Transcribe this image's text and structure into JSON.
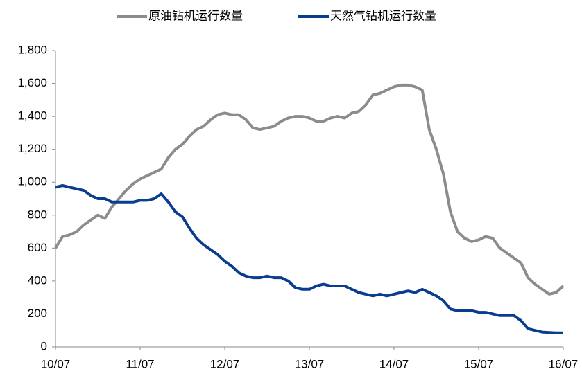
{
  "chart_data": {
    "type": "line",
    "x": [
      "10/07",
      "10/08",
      "10/09",
      "10/10",
      "10/11",
      "10/12",
      "11/01",
      "11/02",
      "11/03",
      "11/04",
      "11/05",
      "11/06",
      "11/07",
      "11/08",
      "11/09",
      "11/10",
      "11/11",
      "11/12",
      "12/01",
      "12/02",
      "12/03",
      "12/04",
      "12/05",
      "12/06",
      "12/07",
      "12/08",
      "12/09",
      "12/10",
      "12/11",
      "12/12",
      "13/01",
      "13/02",
      "13/03",
      "13/04",
      "13/05",
      "13/06",
      "13/07",
      "13/08",
      "13/09",
      "13/10",
      "13/11",
      "13/12",
      "14/01",
      "14/02",
      "14/03",
      "14/04",
      "14/05",
      "14/06",
      "14/07",
      "14/08",
      "14/09",
      "14/10",
      "14/11",
      "14/12",
      "15/01",
      "15/02",
      "15/03",
      "15/04",
      "15/05",
      "15/06",
      "15/07",
      "15/08",
      "15/09",
      "15/10",
      "15/11",
      "15/12",
      "16/01",
      "16/02",
      "16/03",
      "16/04",
      "16/05",
      "16/06",
      "16/07"
    ],
    "xticks": [
      "10/07",
      "11/07",
      "12/07",
      "13/07",
      "14/07",
      "15/07",
      "16/07"
    ],
    "series": [
      {
        "name": "原油钻机运行数量",
        "color": "#8c8c8c",
        "values": [
          600,
          670,
          680,
          700,
          740,
          770,
          800,
          780,
          850,
          900,
          950,
          990,
          1020,
          1040,
          1060,
          1080,
          1150,
          1200,
          1230,
          1280,
          1320,
          1340,
          1380,
          1410,
          1420,
          1410,
          1410,
          1380,
          1330,
          1320,
          1330,
          1340,
          1370,
          1390,
          1400,
          1400,
          1390,
          1370,
          1370,
          1390,
          1400,
          1390,
          1420,
          1430,
          1470,
          1530,
          1540,
          1560,
          1580,
          1590,
          1590,
          1580,
          1560,
          1320,
          1200,
          1050,
          820,
          700,
          660,
          640,
          650,
          670,
          660,
          600,
          570,
          540,
          510,
          420,
          380,
          350,
          320,
          330,
          370
        ]
      },
      {
        "name": "天然气钻机运行数量",
        "color": "#0a3d8f",
        "values": [
          970,
          980,
          970,
          960,
          950,
          920,
          900,
          900,
          880,
          880,
          880,
          880,
          890,
          890,
          900,
          930,
          880,
          820,
          790,
          720,
          660,
          620,
          590,
          560,
          520,
          490,
          450,
          430,
          420,
          420,
          430,
          420,
          420,
          400,
          360,
          350,
          350,
          370,
          380,
          370,
          370,
          370,
          350,
          330,
          320,
          310,
          320,
          310,
          320,
          330,
          340,
          330,
          350,
          330,
          310,
          280,
          230,
          220,
          220,
          220,
          210,
          210,
          200,
          190,
          190,
          190,
          160,
          110,
          100,
          90,
          87,
          85,
          85
        ]
      }
    ],
    "ylim": [
      0,
      1800
    ],
    "yticks": [
      0,
      200,
      400,
      600,
      800,
      1000,
      1200,
      1400,
      1600,
      {
        "value": 1000,
        "label": "1,000"
      },
      {
        "value": 1200,
        "label": "1,200"
      },
      {
        "value": 1400,
        "label": "1,400"
      },
      {
        "value": 1600,
        "label": "1,600"
      },
      {
        "value": 1800,
        "label": "1,800"
      }
    ],
    "legend": "top"
  }
}
